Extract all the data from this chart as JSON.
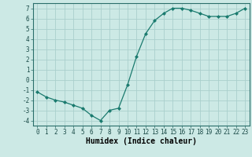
{
  "x": [
    0,
    1,
    2,
    3,
    4,
    5,
    6,
    7,
    8,
    9,
    10,
    11,
    12,
    13,
    14,
    15,
    16,
    17,
    18,
    19,
    20,
    21,
    22,
    23
  ],
  "y": [
    -1.2,
    -1.7,
    -2.0,
    -2.2,
    -2.5,
    -2.8,
    -3.5,
    -4.0,
    -3.0,
    -2.8,
    -0.5,
    2.3,
    4.5,
    5.8,
    6.5,
    7.0,
    7.0,
    6.8,
    6.5,
    6.2,
    6.2,
    6.2,
    6.5,
    7.0
  ],
  "line_color": "#1a7a6e",
  "marker": "D",
  "marker_size": 2.0,
  "bg_color": "#cce9e5",
  "grid_color": "#aacfcc",
  "xlabel": "Humidex (Indice chaleur)",
  "xlim": [
    -0.5,
    23.5
  ],
  "ylim": [
    -4.5,
    7.5
  ],
  "yticks": [
    -4,
    -3,
    -2,
    -1,
    0,
    1,
    2,
    3,
    4,
    5,
    6,
    7
  ],
  "xticks": [
    0,
    1,
    2,
    3,
    4,
    5,
    6,
    7,
    8,
    9,
    10,
    11,
    12,
    13,
    14,
    15,
    16,
    17,
    18,
    19,
    20,
    21,
    22,
    23
  ],
  "axis_fontsize": 6.5,
  "tick_fontsize": 5.5,
  "xlabel_fontsize": 7.0
}
